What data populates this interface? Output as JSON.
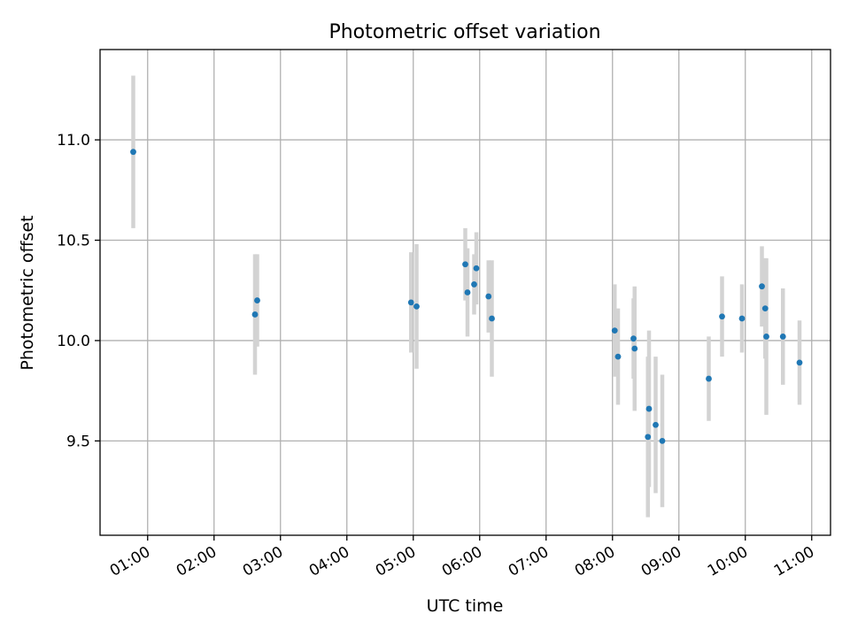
{
  "chart_data": {
    "type": "scatter",
    "title": "Photometric offset variation",
    "xlabel": "UTC time",
    "ylabel": "Photometric offset",
    "x_unit": "UTC time (HH:MM)",
    "xlim": [
      "00:17",
      "11:17"
    ],
    "ylim": [
      9.03,
      11.45
    ],
    "x_ticks": [
      "01:00",
      "02:00",
      "03:00",
      "04:00",
      "05:00",
      "06:00",
      "07:00",
      "08:00",
      "09:00",
      "10:00",
      "11:00"
    ],
    "y_ticks": [
      11.0,
      10.5,
      10.0,
      9.5
    ],
    "y_tick_labels": [
      "11.0",
      "10.5",
      "10.0",
      "9.5"
    ],
    "grid": true,
    "marker_color": "#1f77b4",
    "errorbar_color": "#d3d3d3",
    "points": [
      {
        "x": "00:47",
        "y": 10.94,
        "err": 0.38
      },
      {
        "x": "02:37",
        "y": 10.13,
        "err": 0.3
      },
      {
        "x": "02:39",
        "y": 10.2,
        "err": 0.23
      },
      {
        "x": "04:58",
        "y": 10.19,
        "err": 0.25
      },
      {
        "x": "05:03",
        "y": 10.17,
        "err": 0.31
      },
      {
        "x": "05:47",
        "y": 10.38,
        "err": 0.18
      },
      {
        "x": "05:49",
        "y": 10.24,
        "err": 0.22
      },
      {
        "x": "05:55",
        "y": 10.28,
        "err": 0.15
      },
      {
        "x": "05:57",
        "y": 10.36,
        "err": 0.18
      },
      {
        "x": "06:08",
        "y": 10.22,
        "err": 0.18
      },
      {
        "x": "06:11",
        "y": 10.11,
        "err": 0.29
      },
      {
        "x": "08:02",
        "y": 10.05,
        "err": 0.23
      },
      {
        "x": "08:05",
        "y": 9.92,
        "err": 0.24
      },
      {
        "x": "08:19",
        "y": 10.01,
        "err": 0.2
      },
      {
        "x": "08:20",
        "y": 9.96,
        "err": 0.31
      },
      {
        "x": "08:32",
        "y": 9.52,
        "err": 0.4
      },
      {
        "x": "08:33",
        "y": 9.66,
        "err": 0.39
      },
      {
        "x": "08:39",
        "y": 9.58,
        "err": 0.34
      },
      {
        "x": "08:45",
        "y": 9.5,
        "err": 0.33
      },
      {
        "x": "09:27",
        "y": 9.81,
        "err": 0.21
      },
      {
        "x": "09:39",
        "y": 10.12,
        "err": 0.2
      },
      {
        "x": "09:57",
        "y": 10.11,
        "err": 0.17
      },
      {
        "x": "10:15",
        "y": 10.27,
        "err": 0.2
      },
      {
        "x": "10:18",
        "y": 10.16,
        "err": 0.25
      },
      {
        "x": "10:19",
        "y": 10.02,
        "err": 0.39
      },
      {
        "x": "10:34",
        "y": 10.02,
        "err": 0.24
      },
      {
        "x": "10:49",
        "y": 9.89,
        "err": 0.21
      }
    ]
  }
}
